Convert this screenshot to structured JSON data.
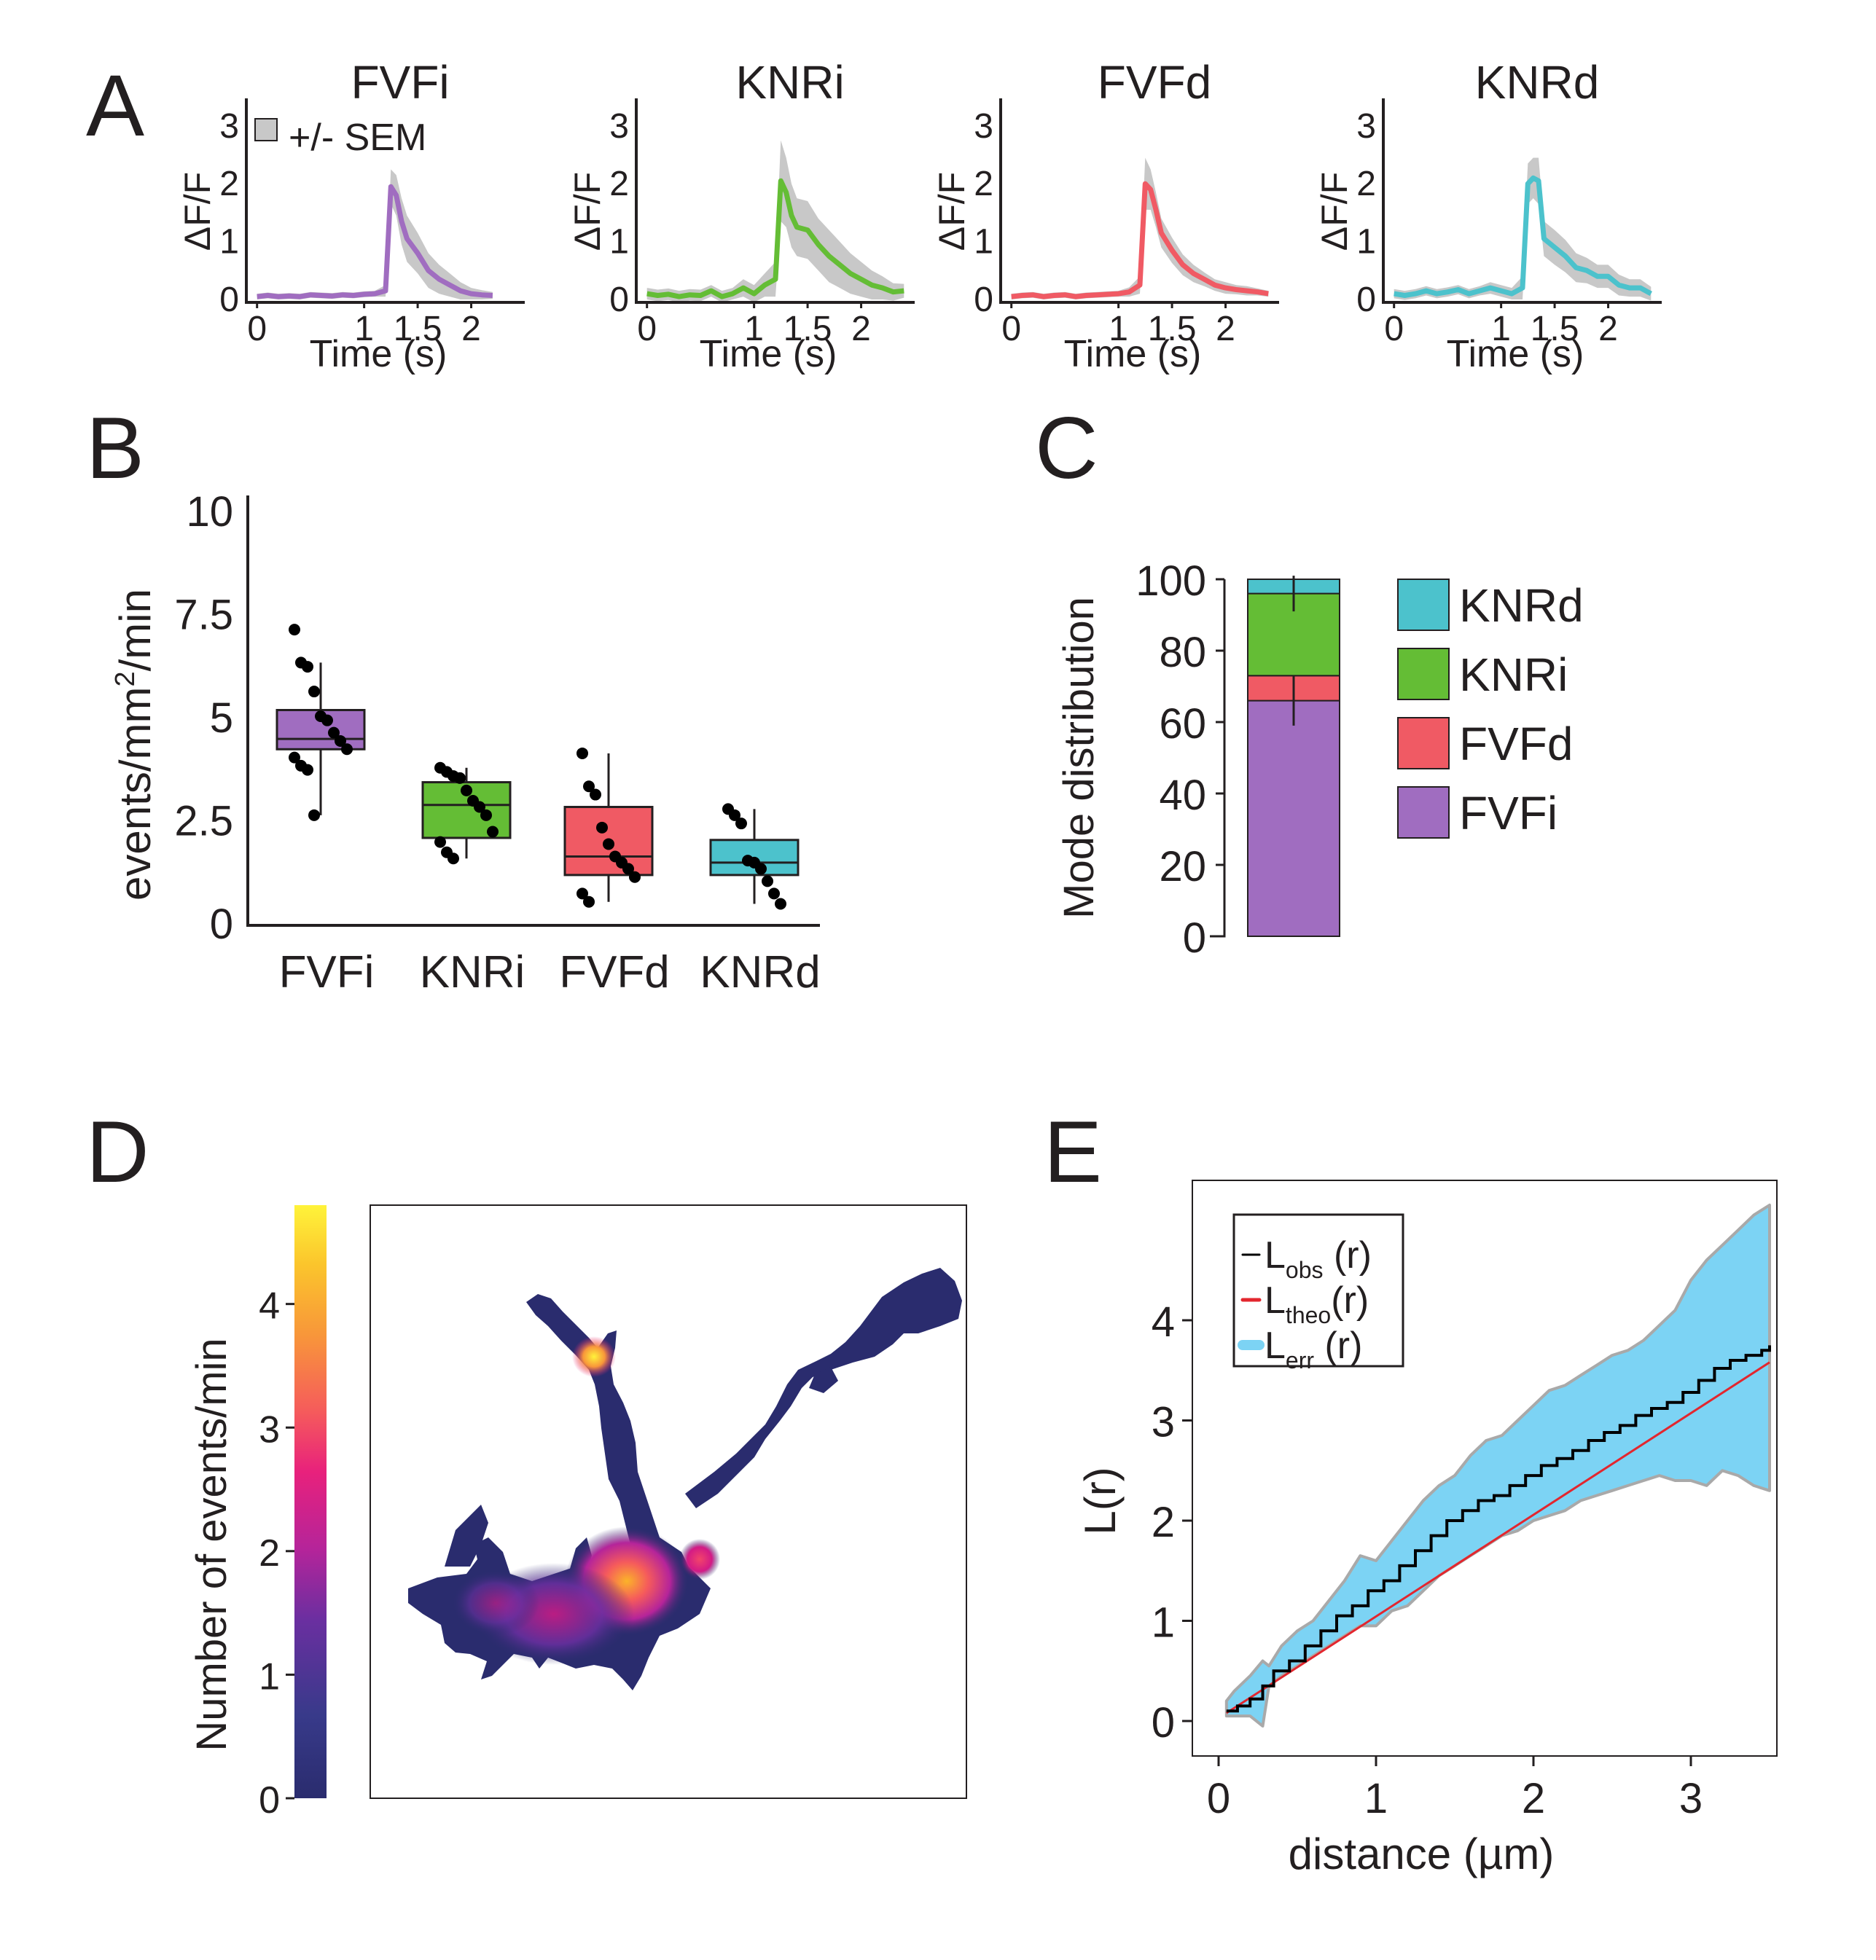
{
  "panel_labels": [
    "A",
    "B",
    "C",
    "D",
    "E"
  ],
  "colors": {
    "FVFi": "#a06dc0",
    "KNRi": "#64bd35",
    "FVFd": "#f05a64",
    "KNRd": "#4cc2cc",
    "sem": "#c8c8c8",
    "err_band": "#7cd3f4",
    "obs": "#000000",
    "theo": "#e3262e",
    "ink": "#231f20"
  },
  "chart_data": [
    {
      "id": "A",
      "type": "line",
      "legend_label": "+/- SEM",
      "ylabel": "ΔF/F",
      "xlabel": "Time (s)",
      "xticks": [
        "0",
        "1",
        "1.5",
        "2"
      ],
      "xtick_values": [
        0,
        1,
        1.5,
        2
      ],
      "yticks": [
        "0",
        "1",
        "2",
        "3"
      ],
      "ytick_values": [
        0,
        1,
        2,
        3
      ],
      "xlim": [
        -0.1,
        2.5
      ],
      "ylim": [
        -0.1,
        3.3
      ],
      "panels": [
        {
          "title": "FVFi",
          "color": "#a06dc0",
          "x": [
            0,
            0.1,
            0.2,
            0.3,
            0.4,
            0.5,
            0.6,
            0.7,
            0.8,
            0.9,
            1.0,
            1.1,
            1.2,
            1.25,
            1.3,
            1.35,
            1.4,
            1.5,
            1.6,
            1.7,
            1.8,
            1.9,
            2.0,
            2.1,
            2.2
          ],
          "y": [
            0,
            0.02,
            0,
            0.01,
            0,
            0.03,
            0.02,
            0.01,
            0.03,
            0.02,
            0.04,
            0.05,
            0.1,
            1.9,
            1.75,
            1.3,
            1.0,
            0.75,
            0.45,
            0.3,
            0.2,
            0.1,
            0.05,
            0.03,
            0.02
          ],
          "sem": [
            0.05,
            0.05,
            0.05,
            0.05,
            0.05,
            0.05,
            0.05,
            0.05,
            0.05,
            0.05,
            0.05,
            0.05,
            0.1,
            0.3,
            0.35,
            0.4,
            0.4,
            0.35,
            0.3,
            0.25,
            0.2,
            0.15,
            0.1,
            0.08,
            0.06
          ]
        },
        {
          "title": "KNRi",
          "color": "#64bd35",
          "x": [
            0,
            0.1,
            0.2,
            0.3,
            0.4,
            0.5,
            0.6,
            0.7,
            0.8,
            0.9,
            1.0,
            1.1,
            1.2,
            1.25,
            1.3,
            1.35,
            1.4,
            1.5,
            1.6,
            1.7,
            1.8,
            1.9,
            2.0,
            2.1,
            2.2,
            2.3,
            2.4
          ],
          "y": [
            0.05,
            0.02,
            0.04,
            0,
            0.03,
            0.02,
            0.1,
            0,
            0.05,
            0.15,
            0.05,
            0.2,
            0.3,
            2.0,
            1.8,
            1.4,
            1.2,
            1.15,
            0.9,
            0.7,
            0.55,
            0.4,
            0.3,
            0.2,
            0.15,
            0.08,
            0.1
          ],
          "sem": [
            0.1,
            0.1,
            0.1,
            0.1,
            0.1,
            0.1,
            0.1,
            0.1,
            0.1,
            0.15,
            0.15,
            0.2,
            0.3,
            0.7,
            0.6,
            0.55,
            0.5,
            0.5,
            0.45,
            0.45,
            0.4,
            0.35,
            0.3,
            0.25,
            0.2,
            0.15,
            0.12
          ]
        },
        {
          "title": "FVFd",
          "color": "#f05a64",
          "x": [
            0,
            0.1,
            0.2,
            0.3,
            0.4,
            0.5,
            0.6,
            0.7,
            0.8,
            0.9,
            1.0,
            1.1,
            1.2,
            1.25,
            1.3,
            1.35,
            1.4,
            1.5,
            1.6,
            1.7,
            1.8,
            1.9,
            2.0,
            2.1,
            2.2,
            2.3,
            2.4
          ],
          "y": [
            0,
            0.02,
            0.03,
            0,
            0.02,
            0.03,
            0,
            0.02,
            0.03,
            0.04,
            0.05,
            0.08,
            0.2,
            1.95,
            1.85,
            1.5,
            1.1,
            0.8,
            0.55,
            0.4,
            0.3,
            0.2,
            0.15,
            0.12,
            0.1,
            0.08,
            0.05
          ],
          "sem": [
            0.05,
            0.05,
            0.05,
            0.05,
            0.05,
            0.05,
            0.05,
            0.05,
            0.05,
            0.05,
            0.05,
            0.08,
            0.15,
            0.45,
            0.35,
            0.3,
            0.25,
            0.22,
            0.18,
            0.15,
            0.12,
            0.1,
            0.1,
            0.08,
            0.08,
            0.06,
            0.05
          ]
        },
        {
          "title": "KNRd",
          "color": "#4cc2cc",
          "x": [
            0,
            0.1,
            0.2,
            0.3,
            0.4,
            0.5,
            0.6,
            0.7,
            0.8,
            0.9,
            1.0,
            1.1,
            1.2,
            1.25,
            1.3,
            1.35,
            1.4,
            1.5,
            1.6,
            1.7,
            1.8,
            1.9,
            2.0,
            2.1,
            2.2,
            2.3,
            2.4
          ],
          "y": [
            0.05,
            0.02,
            0.05,
            0.1,
            0.05,
            0.08,
            0.12,
            0.05,
            0.1,
            0.15,
            0.1,
            0.05,
            0.15,
            1.95,
            2.05,
            2.0,
            1.0,
            0.85,
            0.7,
            0.5,
            0.45,
            0.35,
            0.35,
            0.2,
            0.15,
            0.15,
            0.05
          ],
          "sem": [
            0.08,
            0.08,
            0.08,
            0.08,
            0.08,
            0.08,
            0.08,
            0.08,
            0.08,
            0.1,
            0.1,
            0.1,
            0.2,
            0.35,
            0.35,
            0.4,
            0.3,
            0.3,
            0.28,
            0.25,
            0.22,
            0.2,
            0.2,
            0.18,
            0.15,
            0.15,
            0.12
          ]
        }
      ]
    },
    {
      "id": "B",
      "type": "box",
      "ylabel": "events/mm²/min",
      "ylabel_main": "events/mm",
      "ylabel_sup": "2",
      "ylabel_tail": "/min",
      "categories": [
        "FVFi",
        "KNRi",
        "FVFd",
        "KNRd"
      ],
      "yticks": [
        "0",
        "2.5",
        "5",
        "7.5",
        "10"
      ],
      "ytick_values": [
        0,
        2.5,
        5,
        7.5,
        10
      ],
      "ylim": [
        -0.1,
        10.4
      ],
      "boxes": [
        {
          "q1": 4.2,
          "median": 4.45,
          "q3": 5.15,
          "whisker_low": 2.6,
          "whisker_high": 6.3,
          "points": [
            7.1,
            6.3,
            6.2,
            5.6,
            5.0,
            4.9,
            4.6,
            4.4,
            4.2,
            4.0,
            3.8,
            3.7,
            2.6
          ]
        },
        {
          "q1": 2.05,
          "median": 2.85,
          "q3": 3.4,
          "whisker_low": 1.55,
          "whisker_high": 3.75,
          "points": [
            3.75,
            3.65,
            3.55,
            3.5,
            3.2,
            2.95,
            2.8,
            2.6,
            2.2,
            1.95,
            1.7,
            1.55
          ]
        },
        {
          "q1": 1.15,
          "median": 1.6,
          "q3": 2.8,
          "whisker_low": 0.5,
          "whisker_high": 4.1,
          "points": [
            4.1,
            3.3,
            3.1,
            2.3,
            1.9,
            1.6,
            1.45,
            1.3,
            1.1,
            0.7,
            0.5
          ]
        },
        {
          "q1": 1.15,
          "median": 1.45,
          "q3": 2.0,
          "whisker_low": 0.45,
          "whisker_high": 2.75,
          "points": [
            2.75,
            2.6,
            2.4,
            1.5,
            1.45,
            1.3,
            1.0,
            0.7,
            0.45
          ]
        }
      ]
    },
    {
      "id": "C",
      "type": "stacked-bar",
      "ylabel": "Mode distribution",
      "yticks": [
        "0",
        "20",
        "40",
        "60",
        "80",
        "100"
      ],
      "ytick_values": [
        0,
        20,
        40,
        60,
        80,
        100
      ],
      "ylim": [
        0,
        100
      ],
      "segments": [
        {
          "label": "FVFi",
          "value": 66
        },
        {
          "label": "FVFd",
          "value": 7
        },
        {
          "label": "KNRi",
          "value": 23
        },
        {
          "label": "KNRd",
          "value": 4
        }
      ],
      "error_bars": [
        {
          "at": 66,
          "low": 59,
          "high": 73
        },
        {
          "at": 96,
          "low": 91,
          "high": 101
        }
      ],
      "legend": [
        "KNRd",
        "KNRi",
        "FVFd",
        "FVFi"
      ]
    },
    {
      "id": "D",
      "type": "heatmap",
      "colorbar_label": "Number of events/min",
      "colorbar_ticks": [
        "0",
        "1",
        "2",
        "3",
        "4"
      ],
      "colorbar_tick_values": [
        0,
        1,
        2,
        3,
        4
      ],
      "colorbar_range": [
        0,
        4.8
      ],
      "colormap": [
        "#2a2c6e",
        "#4a2f8e",
        "#8e2a9a",
        "#d31a86",
        "#f2446a",
        "#f77e3c",
        "#fbb329",
        "#fff33a"
      ]
    },
    {
      "id": "E",
      "type": "line",
      "xlabel": "distance (µm)",
      "ylabel": "L(r)",
      "xticks": [
        "0",
        "1",
        "2",
        "3"
      ],
      "xtick_values": [
        0,
        1,
        2,
        3
      ],
      "yticks": [
        "0",
        "1",
        "2",
        "3",
        "4"
      ],
      "ytick_values": [
        0,
        1,
        2,
        3,
        4
      ],
      "xlim": [
        -0.15,
        3.5
      ],
      "ylim": [
        -0.2,
        5.2
      ],
      "legend": [
        {
          "main": "L",
          "sub": "obs",
          "tail": " (r)"
        },
        {
          "main": "L",
          "sub": "theo",
          "tail": "(r)"
        },
        {
          "main": "L",
          "sub": "err",
          "tail": " (r)"
        }
      ],
      "obs": {
        "x": [
          0.05,
          0.12,
          0.2,
          0.28,
          0.35,
          0.45,
          0.55,
          0.65,
          0.75,
          0.85,
          0.95,
          1.05,
          1.15,
          1.25,
          1.35,
          1.45,
          1.55,
          1.65,
          1.75,
          1.85,
          1.95,
          2.05,
          2.15,
          2.25,
          2.35,
          2.45,
          2.55,
          2.65,
          2.75,
          2.85,
          2.95,
          3.05,
          3.15,
          3.25,
          3.35,
          3.45,
          3.5
        ],
        "y": [
          0.1,
          0.15,
          0.22,
          0.35,
          0.5,
          0.6,
          0.75,
          0.9,
          1.05,
          1.15,
          1.3,
          1.4,
          1.55,
          1.7,
          1.85,
          2.0,
          2.1,
          2.2,
          2.25,
          2.35,
          2.45,
          2.55,
          2.62,
          2.7,
          2.8,
          2.88,
          2.95,
          3.05,
          3.12,
          3.18,
          3.28,
          3.4,
          3.52,
          3.6,
          3.65,
          3.7,
          3.75
        ]
      },
      "theo": {
        "x": [
          0.05,
          3.5
        ],
        "y": [
          0.08,
          3.58
        ]
      },
      "err": {
        "x": [
          0.05,
          0.1,
          0.2,
          0.28,
          0.32,
          0.4,
          0.5,
          0.6,
          0.7,
          0.8,
          0.9,
          1.0,
          1.1,
          1.2,
          1.3,
          1.4,
          1.5,
          1.6,
          1.7,
          1.8,
          1.9,
          2.0,
          2.1,
          2.2,
          2.3,
          2.4,
          2.5,
          2.6,
          2.7,
          2.8,
          2.9,
          3.0,
          3.1,
          3.2,
          3.3,
          3.4,
          3.5
        ],
        "upper": [
          0.2,
          0.3,
          0.45,
          0.6,
          0.55,
          0.75,
          0.9,
          1.0,
          1.2,
          1.4,
          1.65,
          1.6,
          1.8,
          2.0,
          2.2,
          2.35,
          2.45,
          2.65,
          2.8,
          2.85,
          3.0,
          3.15,
          3.3,
          3.35,
          3.45,
          3.55,
          3.65,
          3.7,
          3.8,
          3.95,
          4.1,
          4.4,
          4.6,
          4.75,
          4.9,
          5.05,
          5.15
        ],
        "lower": [
          0.05,
          0.05,
          0.05,
          -0.05,
          0.35,
          0.45,
          0.55,
          0.65,
          0.75,
          0.85,
          0.95,
          0.95,
          1.1,
          1.15,
          1.3,
          1.45,
          1.55,
          1.65,
          1.75,
          1.85,
          1.9,
          2.0,
          2.05,
          2.1,
          2.2,
          2.25,
          2.3,
          2.35,
          2.4,
          2.45,
          2.4,
          2.4,
          2.35,
          2.5,
          2.45,
          2.35,
          2.3
        ]
      }
    }
  ]
}
